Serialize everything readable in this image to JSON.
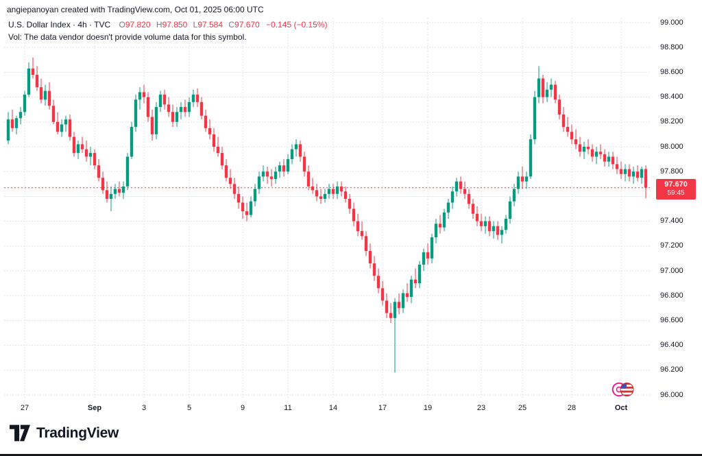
{
  "page": {
    "attribution": "angiepanoyan created with TradingView.com, Oct 01, 2025 06:00 UTC",
    "brand": "TradingView"
  },
  "legend": {
    "title": "U.S. Dollar Index · 4h · TVC",
    "ohlc": {
      "o_label": "O",
      "o": "97.820",
      "h_label": "H",
      "h": "97.850",
      "l_label": "L",
      "l": "97.584",
      "c_label": "C",
      "c": "97.670",
      "change": "−0.145 (−0.15%)"
    },
    "vol_note": "Vol: The data vendor doesn't provide volume data for this symbol."
  },
  "price_scale": {
    "labels": [
      {
        "text": "99.000",
        "value": 99.0
      },
      {
        "text": "98.800",
        "value": 98.8
      },
      {
        "text": "98.600",
        "value": 98.6
      },
      {
        "text": "98.400",
        "value": 98.4
      },
      {
        "text": "98.200",
        "value": 98.2
      },
      {
        "text": "98.000",
        "value": 98.0
      },
      {
        "text": "97.800",
        "value": 97.8
      },
      {
        "text": "97.400",
        "value": 97.4
      },
      {
        "text": "97.200",
        "value": 97.2
      },
      {
        "text": "97.000",
        "value": 97.0
      },
      {
        "text": "96.800",
        "value": 96.8
      },
      {
        "text": "96.600",
        "value": 96.6
      },
      {
        "text": "96.400",
        "value": 96.4
      },
      {
        "text": "96.200",
        "value": 96.2
      },
      {
        "text": "96.000",
        "value": 96.0
      }
    ],
    "last_price": "97.670",
    "countdown": "59:45"
  },
  "colors": {
    "up": "#089981",
    "down": "#f23645",
    "grid": "#dfe3eb",
    "axis_text": "#131722",
    "accent_red": "#f23645"
  },
  "chart_data": {
    "type": "candlestick",
    "title": "U.S. Dollar Index",
    "symbol": "U.S. Dollar Index",
    "interval": "4h",
    "exchange": "TVC",
    "ylabel": "Price",
    "ylim": [
      96.0,
      99.05
    ],
    "grid": true,
    "y_ticks": [
      96.0,
      96.2,
      96.4,
      96.6,
      96.8,
      97.0,
      97.2,
      97.4,
      97.6,
      97.8,
      98.0,
      98.2,
      98.4,
      98.6,
      98.8,
      99.0
    ],
    "x_ticks": [
      {
        "text": "27",
        "index": 4,
        "bold": false
      },
      {
        "text": "Sep",
        "index": 21,
        "bold": true
      },
      {
        "text": "3",
        "index": 33,
        "bold": false
      },
      {
        "text": "5",
        "index": 44,
        "bold": false
      },
      {
        "text": "9",
        "index": 57,
        "bold": false
      },
      {
        "text": "11",
        "index": 68,
        "bold": false
      },
      {
        "text": "14",
        "index": 79,
        "bold": false
      },
      {
        "text": "17",
        "index": 91,
        "bold": false
      },
      {
        "text": "19",
        "index": 102,
        "bold": false
      },
      {
        "text": "23",
        "index": 115,
        "bold": false
      },
      {
        "text": "25",
        "index": 125,
        "bold": false
      },
      {
        "text": "28",
        "index": 137,
        "bold": false
      },
      {
        "text": "Oct",
        "index": 149,
        "bold": true
      }
    ],
    "last": {
      "open": 97.82,
      "high": 97.85,
      "low": 97.584,
      "close": 97.67,
      "change": -0.145,
      "change_pct": -0.15
    },
    "candles": [
      [
        98.05,
        98.28,
        98.02,
        98.22
      ],
      [
        98.22,
        98.3,
        98.12,
        98.15
      ],
      [
        98.15,
        98.25,
        98.1,
        98.23
      ],
      [
        98.23,
        98.32,
        98.18,
        98.28
      ],
      [
        98.28,
        98.45,
        98.25,
        98.42
      ],
      [
        98.42,
        98.68,
        98.4,
        98.63
      ],
      [
        98.63,
        98.72,
        98.55,
        98.58
      ],
      [
        98.58,
        98.65,
        98.45,
        98.48
      ],
      [
        98.48,
        98.55,
        98.35,
        98.38
      ],
      [
        98.38,
        98.5,
        98.33,
        98.45
      ],
      [
        98.45,
        98.52,
        98.3,
        98.33
      ],
      [
        98.33,
        98.38,
        98.18,
        98.2
      ],
      [
        98.2,
        98.28,
        98.1,
        98.12
      ],
      [
        98.12,
        98.22,
        98.08,
        98.18
      ],
      [
        98.18,
        98.25,
        98.12,
        98.22
      ],
      [
        98.22,
        98.26,
        98.05,
        98.08
      ],
      [
        98.08,
        98.12,
        97.92,
        97.95
      ],
      [
        97.95,
        98.05,
        97.9,
        98.02
      ],
      [
        98.02,
        98.08,
        97.95,
        97.98
      ],
      [
        97.98,
        98.05,
        97.88,
        97.92
      ],
      [
        97.92,
        98.0,
        97.85,
        97.95
      ],
      [
        97.95,
        97.98,
        97.82,
        97.85
      ],
      [
        97.85,
        97.9,
        97.72,
        97.75
      ],
      [
        97.75,
        97.8,
        97.62,
        97.65
      ],
      [
        97.65,
        97.72,
        97.55,
        97.58
      ],
      [
        97.58,
        97.68,
        97.48,
        97.62
      ],
      [
        97.62,
        97.7,
        97.58,
        97.66
      ],
      [
        97.66,
        97.72,
        97.6,
        97.63
      ],
      [
        97.63,
        97.72,
        97.58,
        97.68
      ],
      [
        97.68,
        97.95,
        97.65,
        97.92
      ],
      [
        97.92,
        98.2,
        97.9,
        98.16
      ],
      [
        98.16,
        98.42,
        98.12,
        98.38
      ],
      [
        98.38,
        98.48,
        98.3,
        98.44
      ],
      [
        98.44,
        98.5,
        98.35,
        98.4
      ],
      [
        98.4,
        98.44,
        98.2,
        98.24
      ],
      [
        98.24,
        98.3,
        98.05,
        98.1
      ],
      [
        98.1,
        98.36,
        98.06,
        98.32
      ],
      [
        98.32,
        98.45,
        98.28,
        98.42
      ],
      [
        98.42,
        98.46,
        98.3,
        98.34
      ],
      [
        98.34,
        98.4,
        98.24,
        98.28
      ],
      [
        98.28,
        98.34,
        98.16,
        98.2
      ],
      [
        98.2,
        98.32,
        98.16,
        98.28
      ],
      [
        98.28,
        98.36,
        98.22,
        98.32
      ],
      [
        98.32,
        98.38,
        98.24,
        98.28
      ],
      [
        98.28,
        98.4,
        98.24,
        98.36
      ],
      [
        98.36,
        98.46,
        98.32,
        98.42
      ],
      [
        98.42,
        98.47,
        98.32,
        98.36
      ],
      [
        98.36,
        98.4,
        98.22,
        98.25
      ],
      [
        98.25,
        98.3,
        98.12,
        98.15
      ],
      [
        98.15,
        98.22,
        98.06,
        98.1
      ],
      [
        98.1,
        98.15,
        97.96,
        98.0
      ],
      [
        98.0,
        98.08,
        97.92,
        97.95
      ],
      [
        97.95,
        98.0,
        97.82,
        97.85
      ],
      [
        97.85,
        97.9,
        97.72,
        97.75
      ],
      [
        97.75,
        97.82,
        97.66,
        97.7
      ],
      [
        97.7,
        97.75,
        97.58,
        97.62
      ],
      [
        97.62,
        97.68,
        97.5,
        97.55
      ],
      [
        97.55,
        97.6,
        97.42,
        97.48
      ],
      [
        97.48,
        97.55,
        97.4,
        97.45
      ],
      [
        97.45,
        97.6,
        97.43,
        97.56
      ],
      [
        97.56,
        97.7,
        97.52,
        97.66
      ],
      [
        97.66,
        97.8,
        97.62,
        97.76
      ],
      [
        97.76,
        97.85,
        97.72,
        97.8
      ],
      [
        97.8,
        97.84,
        97.7,
        97.76
      ],
      [
        97.76,
        97.82,
        97.68,
        97.74
      ],
      [
        97.74,
        97.84,
        97.7,
        97.8
      ],
      [
        97.8,
        97.88,
        97.75,
        97.85
      ],
      [
        97.85,
        97.9,
        97.76,
        97.8
      ],
      [
        97.8,
        97.94,
        97.78,
        97.9
      ],
      [
        97.9,
        98.02,
        97.86,
        97.98
      ],
      [
        97.98,
        98.06,
        97.92,
        98.02
      ],
      [
        98.02,
        98.05,
        97.88,
        97.92
      ],
      [
        97.92,
        97.96,
        97.76,
        97.8
      ],
      [
        97.8,
        97.85,
        97.65,
        97.68
      ],
      [
        97.68,
        97.75,
        97.62,
        97.65
      ],
      [
        97.65,
        97.7,
        97.56,
        97.6
      ],
      [
        97.6,
        97.66,
        97.54,
        97.58
      ],
      [
        97.58,
        97.66,
        97.55,
        97.62
      ],
      [
        97.62,
        97.7,
        97.58,
        97.66
      ],
      [
        97.66,
        97.7,
        97.58,
        97.62
      ],
      [
        97.62,
        97.72,
        97.58,
        97.68
      ],
      [
        97.68,
        97.72,
        97.6,
        97.64
      ],
      [
        97.64,
        97.68,
        97.55,
        97.58
      ],
      [
        97.58,
        97.62,
        97.46,
        97.5
      ],
      [
        97.5,
        97.55,
        97.36,
        97.4
      ],
      [
        97.4,
        97.46,
        97.28,
        97.32
      ],
      [
        97.32,
        97.4,
        97.25,
        97.28
      ],
      [
        97.28,
        97.32,
        97.12,
        97.16
      ],
      [
        97.16,
        97.22,
        97.02,
        97.06
      ],
      [
        97.06,
        97.12,
        96.92,
        96.96
      ],
      [
        96.96,
        97.02,
        96.82,
        96.86
      ],
      [
        96.86,
        96.92,
        96.72,
        96.76
      ],
      [
        96.76,
        96.82,
        96.62,
        96.66
      ],
      [
        96.66,
        96.74,
        96.58,
        96.62
      ],
      [
        96.62,
        96.78,
        96.18,
        96.75
      ],
      [
        96.75,
        96.82,
        96.65,
        96.7
      ],
      [
        96.7,
        96.85,
        96.66,
        96.82
      ],
      [
        96.82,
        96.9,
        96.75,
        96.79
      ],
      [
        96.79,
        96.96,
        96.74,
        96.93
      ],
      [
        96.93,
        97.02,
        96.86,
        96.9
      ],
      [
        96.9,
        97.08,
        96.86,
        97.05
      ],
      [
        97.05,
        97.18,
        97.0,
        97.15
      ],
      [
        97.15,
        97.22,
        97.05,
        97.1
      ],
      [
        97.1,
        97.3,
        97.06,
        97.27
      ],
      [
        97.27,
        97.42,
        97.22,
        97.38
      ],
      [
        97.38,
        97.45,
        97.3,
        97.35
      ],
      [
        97.35,
        97.5,
        97.32,
        97.47
      ],
      [
        97.47,
        97.58,
        97.42,
        97.55
      ],
      [
        97.55,
        97.68,
        97.5,
        97.64
      ],
      [
        97.64,
        97.75,
        97.6,
        97.72
      ],
      [
        97.72,
        97.76,
        97.62,
        97.66
      ],
      [
        97.66,
        97.72,
        97.58,
        97.62
      ],
      [
        97.62,
        97.66,
        97.5,
        97.54
      ],
      [
        97.54,
        97.58,
        97.42,
        97.46
      ],
      [
        97.46,
        97.52,
        97.36,
        97.4
      ],
      [
        97.4,
        97.46,
        97.32,
        97.36
      ],
      [
        97.36,
        97.44,
        97.3,
        97.4
      ],
      [
        97.4,
        97.44,
        97.28,
        97.32
      ],
      [
        97.32,
        97.4,
        97.26,
        97.36
      ],
      [
        97.36,
        97.4,
        97.25,
        97.29
      ],
      [
        97.29,
        97.36,
        97.22,
        97.33
      ],
      [
        97.33,
        97.45,
        97.3,
        97.42
      ],
      [
        97.42,
        97.6,
        97.38,
        97.56
      ],
      [
        97.56,
        97.7,
        97.52,
        97.66
      ],
      [
        97.66,
        97.8,
        97.62,
        97.76
      ],
      [
        97.76,
        97.84,
        97.66,
        97.72
      ],
      [
        97.72,
        97.8,
        97.66,
        97.76
      ],
      [
        97.76,
        98.1,
        97.74,
        98.06
      ],
      [
        98.06,
        98.45,
        98.02,
        98.4
      ],
      [
        98.4,
        98.65,
        98.35,
        98.55
      ],
      [
        98.55,
        98.58,
        98.35,
        98.4
      ],
      [
        98.4,
        98.52,
        98.36,
        98.46
      ],
      [
        98.46,
        98.55,
        98.4,
        98.5
      ],
      [
        98.5,
        98.53,
        98.35,
        98.38
      ],
      [
        98.38,
        98.42,
        98.22,
        98.26
      ],
      [
        98.26,
        98.32,
        98.12,
        98.16
      ],
      [
        98.16,
        98.24,
        98.08,
        98.12
      ],
      [
        98.12,
        98.18,
        98.02,
        98.06
      ],
      [
        98.06,
        98.14,
        97.98,
        98.02
      ],
      [
        98.02,
        98.08,
        97.92,
        97.96
      ],
      [
        97.96,
        98.04,
        97.9,
        98.0
      ],
      [
        98.0,
        98.06,
        97.94,
        97.98
      ],
      [
        97.98,
        98.02,
        97.88,
        97.92
      ],
      [
        97.92,
        98.0,
        97.86,
        97.96
      ],
      [
        97.96,
        98.02,
        97.9,
        97.94
      ],
      [
        97.94,
        97.98,
        97.84,
        97.88
      ],
      [
        97.88,
        97.96,
        97.84,
        97.92
      ],
      [
        97.92,
        97.96,
        97.82,
        97.86
      ],
      [
        97.86,
        97.92,
        97.78,
        97.82
      ],
      [
        97.82,
        97.88,
        97.74,
        97.78
      ],
      [
        97.78,
        97.86,
        97.72,
        97.82
      ],
      [
        97.82,
        97.86,
        97.72,
        97.76
      ],
      [
        97.76,
        97.84,
        97.7,
        97.8
      ],
      [
        97.8,
        97.85,
        97.72,
        97.75
      ],
      [
        97.75,
        97.84,
        97.7,
        97.82
      ],
      [
        97.82,
        97.85,
        97.584,
        97.67
      ]
    ]
  }
}
